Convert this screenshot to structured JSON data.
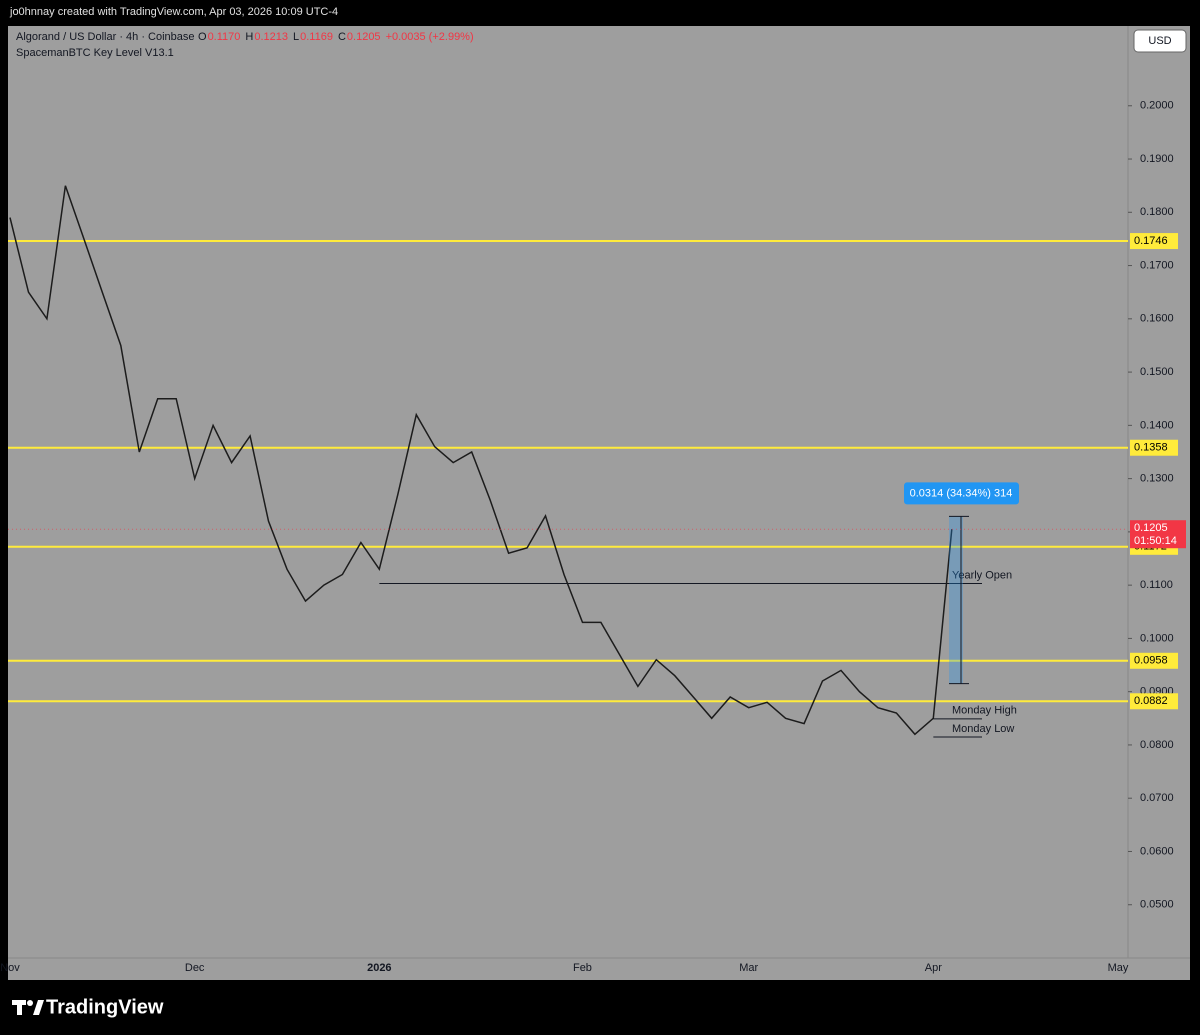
{
  "header": {
    "credit": "jo0hnnay created with TradingView.com, Apr 03, 2026 10:09 UTC-4",
    "brand": "TradingView"
  },
  "chart_data": {
    "type": "line",
    "title": "Algorand / US Dollar · 4h · Coinbase",
    "quote": [
      "O",
      "0.1170",
      "H",
      "0.1213",
      "L",
      "0.1169",
      "C",
      "0.1205",
      "+0.0035 (+2.99%)"
    ],
    "indicator": "SpacemanBTC Key Level V13.1",
    "currency": "USD",
    "countdown": "01:50:14",
    "color": "#1c1c1c",
    "categories": [
      "Nov",
      null,
      null,
      null,
      null,
      null,
      null,
      null,
      null,
      null,
      "Dec",
      null,
      null,
      null,
      null,
      null,
      null,
      null,
      null,
      null,
      "2026",
      null,
      null,
      null,
      null,
      null,
      null,
      null,
      null,
      null,
      null,
      "Feb",
      null,
      null,
      null,
      null,
      null,
      null,
      null,
      null,
      "Mar",
      null,
      null,
      null,
      null,
      null,
      null,
      null,
      null,
      null,
      "Apr",
      null,
      null,
      null,
      null,
      null,
      null,
      null,
      null,
      null,
      "May"
    ],
    "values": [
      0.179,
      0.165,
      0.16,
      0.185,
      0.175,
      0.165,
      0.155,
      0.135,
      0.145,
      0.145,
      0.13,
      0.14,
      0.133,
      0.138,
      0.122,
      0.113,
      0.107,
      0.11,
      0.112,
      0.118,
      0.113,
      0.127,
      0.142,
      0.136,
      0.133,
      0.135,
      0.126,
      0.116,
      0.117,
      0.123,
      0.112,
      0.103,
      0.103,
      0.097,
      0.091,
      0.096,
      0.093,
      0.089,
      0.085,
      0.089,
      0.087,
      0.088,
      0.085,
      0.084,
      0.092,
      0.094,
      0.09,
      0.087,
      0.086,
      0.082,
      0.085,
      0.1205,
      null,
      null,
      null,
      null,
      null,
      null,
      null,
      null,
      null
    ],
    "ylim": [
      0.04,
      0.2146
    ],
    "yticks": [
      {
        "value": 0.05,
        "label": "0.0500"
      },
      {
        "value": 0.06,
        "label": "0.0600"
      },
      {
        "value": 0.07,
        "label": "0.0700"
      },
      {
        "value": 0.08,
        "label": "0.0800"
      },
      {
        "value": 0.09,
        "label": "0.0900"
      },
      {
        "value": 0.1,
        "label": "0.1000"
      },
      {
        "value": 0.11,
        "label": "0.1100"
      },
      {
        "value": 0.12,
        "label": "0.1200"
      },
      {
        "value": 0.13,
        "label": "0.1300"
      },
      {
        "value": 0.14,
        "label": "0.1400"
      },
      {
        "value": 0.15,
        "label": "0.1500"
      },
      {
        "value": 0.16,
        "label": "0.1600"
      },
      {
        "value": 0.17,
        "label": "0.1700"
      },
      {
        "value": 0.18,
        "label": "0.1800"
      },
      {
        "value": 0.19,
        "label": "0.1900"
      },
      {
        "value": 0.2,
        "label": "0.2000"
      }
    ],
    "grid": false,
    "levels": [
      {
        "value": 0.1746,
        "color": "#ffeb3b"
      },
      {
        "value": 0.1358,
        "color": "#ffeb3b"
      },
      {
        "value": 0.1172,
        "color": "#ffeb3b"
      },
      {
        "value": 0.0958,
        "color": "#ffeb3b"
      },
      {
        "value": 0.0882,
        "color": "#ffeb3b"
      }
    ],
    "annotations": [
      {
        "label": "Yearly Open",
        "value": 0.1103
      },
      {
        "label": "Monday High",
        "value": 0.0849
      },
      {
        "label": "Monday Low",
        "value": 0.0815
      }
    ],
    "measure": {
      "label": "0.0314 (34.34%) 314",
      "from": 0.0915,
      "to": 0.1229,
      "color": "#2196f3"
    }
  }
}
